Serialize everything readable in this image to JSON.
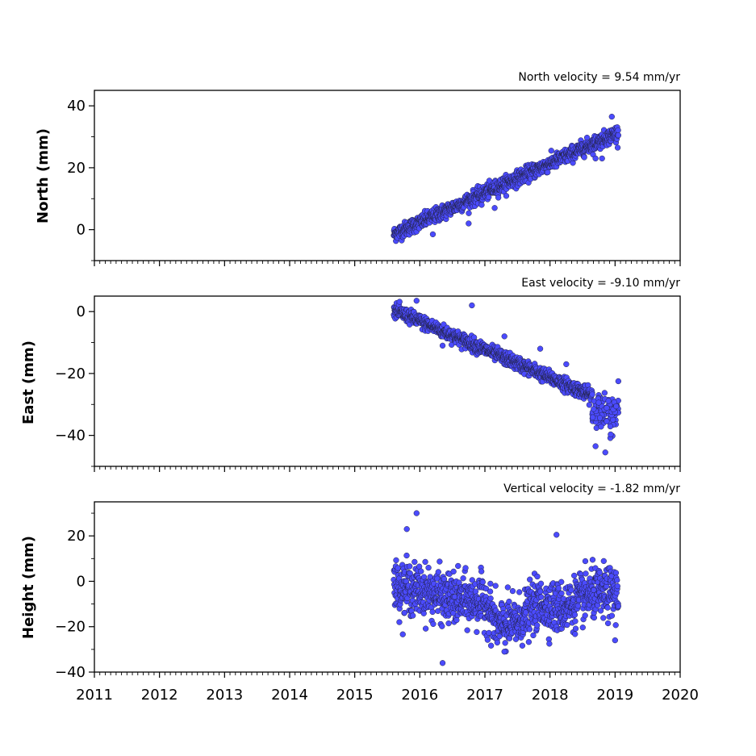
{
  "chart_data": [
    {
      "type": "scatter",
      "title": "North velocity = 9.54 mm/yr",
      "ylabel": "North (mm)",
      "xlim": [
        2011,
        2020
      ],
      "ylim": [
        -10,
        45
      ],
      "y_ticks": [
        0,
        20,
        40
      ],
      "y_tick_labels": [
        "0",
        "20",
        "40"
      ],
      "x_tick_labels_visible": false,
      "color": "#4b4bff",
      "series_model": {
        "start": 2015.6,
        "end": 2019.05,
        "y0": -1.5,
        "slope": 9.54,
        "noise": 1.2
      },
      "outliers": [
        [
          2016.2,
          -1.5
        ],
        [
          2016.75,
          2.0
        ],
        [
          2017.15,
          7.0
        ],
        [
          2016.95,
          8.0
        ],
        [
          2018.7,
          23.0
        ],
        [
          2018.8,
          23.0
        ],
        [
          2018.95,
          36.5
        ]
      ]
    },
    {
      "type": "scatter",
      "title": "East velocity = -9.10 mm/yr",
      "ylabel": "East (mm)",
      "xlim": [
        2011,
        2020
      ],
      "ylim": [
        -50,
        5
      ],
      "y_ticks": [
        -40,
        -20,
        0
      ],
      "y_tick_labels": [
        "−40",
        "−20",
        "0"
      ],
      "x_tick_labels_visible": false,
      "color": "#4b4bff",
      "series_model": {
        "start": 2015.6,
        "end": 2018.65,
        "y0": 0.5,
        "slope": -9.1,
        "noise": 1.1
      },
      "tail_cluster": {
        "start": 2018.65,
        "end": 2019.05,
        "center": -33,
        "spread": 5
      },
      "outliers": [
        [
          2015.95,
          3.5
        ],
        [
          2016.8,
          2.0
        ],
        [
          2017.3,
          -8.0
        ],
        [
          2016.35,
          -11.0
        ],
        [
          2017.85,
          -12.0
        ],
        [
          2018.25,
          -17.0
        ],
        [
          2018.7,
          -43.5
        ],
        [
          2018.85,
          -45.5
        ],
        [
          2019.05,
          -22.5
        ]
      ]
    },
    {
      "type": "scatter",
      "title": "Vertical velocity = -1.82 mm/yr",
      "ylabel": "Height (mm)",
      "xlim": [
        2011,
        2020
      ],
      "ylim": [
        -40,
        35
      ],
      "y_ticks": [
        -40,
        -20,
        0,
        20
      ],
      "y_tick_labels": [
        "−40",
        "−20",
        "0",
        "20"
      ],
      "x_tick_labels_visible": true,
      "x_ticks": [
        2011,
        2012,
        2013,
        2014,
        2015,
        2016,
        2017,
        2018,
        2019,
        2020
      ],
      "x_tick_labels": [
        "2011",
        "2012",
        "2013",
        "2014",
        "2015",
        "2016",
        "2017",
        "2018",
        "2019",
        "2020"
      ],
      "color": "#4b4bff",
      "series_model": {
        "start": 2015.6,
        "end": 2019.05,
        "baseline": [
          [
            2015.6,
            -2
          ],
          [
            2016.0,
            -4
          ],
          [
            2016.5,
            -8
          ],
          [
            2017.0,
            -9
          ],
          [
            2017.2,
            -20
          ],
          [
            2017.5,
            -18
          ],
          [
            2017.8,
            -10
          ],
          [
            2018.2,
            -12
          ],
          [
            2018.6,
            -6
          ],
          [
            2019.05,
            -5
          ]
        ],
        "noise": 5.5
      },
      "outliers": [
        [
          2015.95,
          30.0
        ],
        [
          2015.8,
          23.0
        ],
        [
          2018.1,
          20.5
        ],
        [
          2016.35,
          -36.0
        ],
        [
          2019.0,
          -26.0
        ],
        [
          2017.3,
          -31.0
        ]
      ]
    }
  ]
}
